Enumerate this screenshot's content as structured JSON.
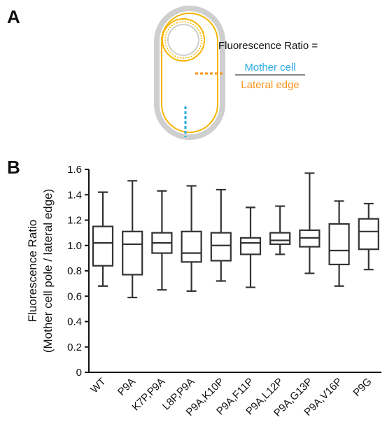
{
  "panel_a": {
    "label": "A",
    "formula_label": "Fluorescence Ratio =",
    "numerator": "Mother cell",
    "denominator": "Lateral edge"
  },
  "chart_data": {
    "type": "box",
    "panel_label": "B",
    "ylabel": [
      "Fluorescence Ratio",
      "(Mother cell pole / lateral edge)"
    ],
    "categories": [
      "WT",
      "P9A",
      "K7P,P9A",
      "L8P,P9A",
      "P9A,K10P",
      "P9A,F11P",
      "P9A,L12P",
      "P9A,G13P",
      "P9A,V16P",
      "P9G"
    ],
    "min": [
      0.68,
      0.59,
      0.65,
      0.64,
      0.72,
      0.67,
      0.93,
      0.78,
      0.68,
      0.81
    ],
    "q1": [
      0.84,
      0.77,
      0.94,
      0.87,
      0.88,
      0.93,
      1.01,
      0.99,
      0.85,
      0.97
    ],
    "median": [
      1.02,
      1.01,
      1.02,
      0.94,
      1.0,
      1.02,
      1.04,
      1.06,
      0.96,
      1.11
    ],
    "q3": [
      1.15,
      1.11,
      1.1,
      1.11,
      1.1,
      1.06,
      1.1,
      1.12,
      1.17,
      1.21
    ],
    "max": [
      1.42,
      1.51,
      1.43,
      1.47,
      1.44,
      1.3,
      1.31,
      1.57,
      1.35,
      1.33
    ],
    "color": "#333333",
    "ylim": [
      0,
      1.6
    ],
    "yticks": [
      0,
      0.2,
      0.4,
      0.6,
      0.8,
      {
        "value": 1,
        "label": "1.0"
      },
      1.2,
      1.4,
      1.6
    ]
  }
}
